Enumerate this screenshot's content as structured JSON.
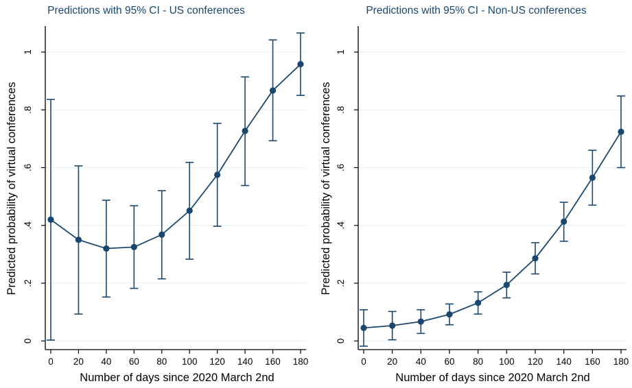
{
  "colors": {
    "series": "#1a476f",
    "grid": "#eaf2f3",
    "axis": "#000000",
    "title": "#1a476f"
  },
  "chart_data": [
    {
      "type": "line",
      "title": "Predictions with 95% CI - US conferences",
      "xlabel": "Number of days since 2020 March 2nd",
      "ylabel": "Predicted probability of virtual conferences",
      "x": [
        0,
        20,
        40,
        60,
        80,
        100,
        120,
        140,
        160,
        180
      ],
      "x_ticks": [
        "0",
        "20",
        "40",
        "60",
        "80",
        "100",
        "120",
        "140",
        "160",
        "180"
      ],
      "y_ticks": [
        "0",
        ".2",
        ".4",
        ".6",
        ".8",
        "1"
      ],
      "y_tick_values": [
        0,
        0.2,
        0.4,
        0.6,
        0.8,
        1
      ],
      "ylim": [
        -0.03,
        1.09
      ],
      "grid": true,
      "series": [
        {
          "values": [
            0.42,
            0.35,
            0.32,
            0.325,
            0.368,
            0.451,
            0.575,
            0.727,
            0.867,
            0.958
          ],
          "ci_lower": [
            0.003,
            0.093,
            0.152,
            0.182,
            0.215,
            0.283,
            0.397,
            0.538,
            0.693,
            0.85
          ],
          "ci_upper": [
            0.836,
            0.606,
            0.487,
            0.468,
            0.52,
            0.618,
            0.753,
            0.914,
            1.042,
            1.066
          ]
        }
      ]
    },
    {
      "type": "line",
      "title": "Predictions with 95% CI - Non-US conferences",
      "xlabel": "Number of days since 2020 March 2nd",
      "ylabel": "Predicted probability of virtual conferences",
      "x": [
        0,
        20,
        40,
        60,
        80,
        100,
        120,
        140,
        160,
        180
      ],
      "x_ticks": [
        "0",
        "20",
        "40",
        "60",
        "80",
        "100",
        "120",
        "140",
        "160",
        "180"
      ],
      "y_ticks": [
        "0",
        ".2",
        ".4",
        ".6",
        ".8",
        "1"
      ],
      "y_tick_values": [
        0,
        0.2,
        0.4,
        0.6,
        0.8,
        1
      ],
      "ylim": [
        -0.03,
        1.09
      ],
      "grid": true,
      "series": [
        {
          "values": [
            0.045,
            0.053,
            0.067,
            0.092,
            0.132,
            0.194,
            0.286,
            0.413,
            0.565,
            0.724
          ],
          "ci_lower": [
            -0.018,
            0.004,
            0.026,
            0.056,
            0.093,
            0.149,
            0.232,
            0.345,
            0.47,
            0.6
          ],
          "ci_upper": [
            0.108,
            0.102,
            0.108,
            0.128,
            0.17,
            0.238,
            0.34,
            0.48,
            0.66,
            0.848
          ]
        }
      ]
    }
  ]
}
